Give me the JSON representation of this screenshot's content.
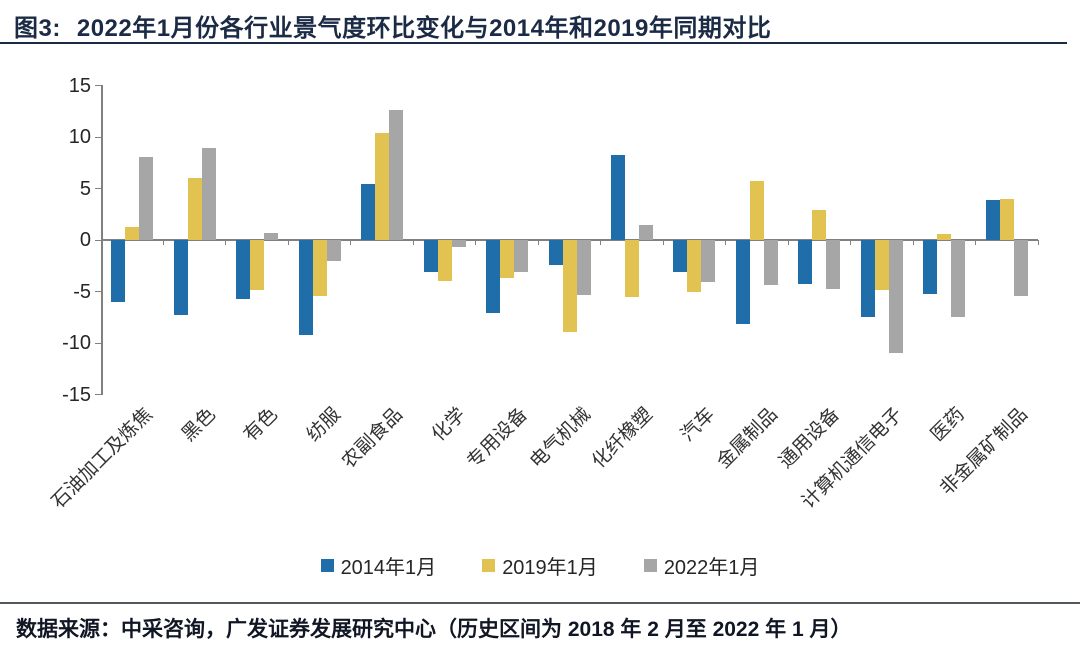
{
  "header": {
    "fig_label": "图3:",
    "title": "2022年1月份各行业景气度环比变化与2014年和2019年同期对比"
  },
  "chart_data": {
    "type": "bar",
    "title": "2022年1月份各行业景气度环比变化与2014年和2019年同期对比",
    "categories": [
      "石油加工及炼焦",
      "黑色",
      "有色",
      "纺服",
      "农副食品",
      "化学",
      "专用设备",
      "电气机械",
      "化纤橡塑",
      "汽车",
      "金属制品",
      "通用设备",
      "计算机通信电子",
      "医药",
      "非金属矿制品"
    ],
    "series": [
      {
        "name": "2014年1月",
        "color": "#1F6DA9",
        "values": [
          -6.0,
          -7.3,
          -5.7,
          -9.2,
          5.4,
          -3.1,
          -7.1,
          -2.4,
          8.3,
          -3.1,
          -8.2,
          -4.3,
          -7.5,
          -5.2,
          3.9
        ]
      },
      {
        "name": "2019年1月",
        "color": "#E2C351",
        "values": [
          1.3,
          6.0,
          -4.9,
          -5.4,
          10.4,
          -4.0,
          -3.7,
          -8.9,
          -5.5,
          -5.0,
          5.7,
          2.9,
          -4.9,
          0.6,
          4.0
        ]
      },
      {
        "name": "2022年1月",
        "color": "#A6A6A6",
        "values": [
          8.1,
          8.9,
          0.7,
          -2.0,
          12.6,
          -0.7,
          -3.1,
          -5.3,
          1.5,
          -4.1,
          -4.4,
          -4.8,
          -11.0,
          -7.5,
          -5.4
        ]
      }
    ],
    "xlabel": "",
    "ylabel": "",
    "ylim": [
      -15,
      15
    ],
    "yticks": [
      15,
      10,
      5,
      0,
      -5,
      -10,
      -15
    ],
    "grid": false,
    "legend_position": "bottom"
  },
  "footer": {
    "source": "数据来源：中采咨询，广发证券发展研究中心（历史区间为 2018 年 2 月至 2022 年 1 月）"
  },
  "theme": {
    "title_navy": "#1b2a45",
    "axis_gray": "#808080",
    "rule_gray": "#53575e",
    "text_dark": "#262626"
  }
}
